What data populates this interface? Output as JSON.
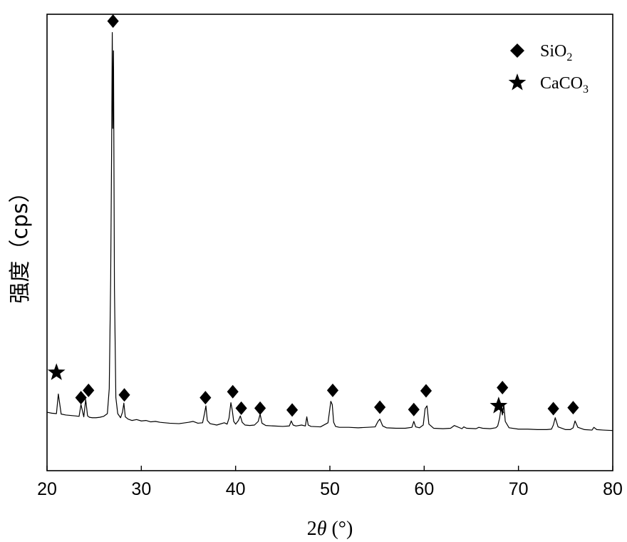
{
  "chart_data": {
    "type": "line",
    "title": "",
    "xlabel": {
      "prefix": "2",
      "symbol": "θ",
      "suffix": " (°)"
    },
    "ylabel": "强度（cps）",
    "xlim": [
      20,
      80
    ],
    "ylim": [
      0,
      100
    ],
    "xticks": [
      20,
      30,
      40,
      50,
      60,
      70,
      80
    ],
    "yticks_shown": false,
    "grid": false,
    "legend_position": "top-right",
    "legend": [
      {
        "marker": "diamond",
        "base": "SiO",
        "sub": "2"
      },
      {
        "marker": "star",
        "base": "CaCO",
        "sub": "3"
      }
    ],
    "series": [
      {
        "x": [
          20,
          20.5,
          21.0,
          21.2,
          21.5,
          22,
          22.5,
          23,
          23.4,
          23.6,
          23.9,
          24.1,
          24.3,
          24.5,
          24.8,
          25.2,
          25.6,
          26.0,
          26.4,
          26.6,
          26.75,
          26.85,
          26.92,
          26.98,
          27.05,
          27.15,
          27.3,
          27.5,
          27.8,
          28.0,
          28.15,
          28.3,
          28.6,
          29.0,
          29.5,
          30.0,
          30.5,
          31.0,
          31.5,
          32.0,
          33.0,
          34.0,
          35.0,
          35.5,
          36.0,
          36.5,
          36.7,
          36.85,
          37.0,
          37.3,
          38.0,
          38.8,
          39.1,
          39.3,
          39.5,
          39.65,
          39.8,
          40.0,
          40.3,
          40.5,
          40.7,
          41.0,
          41.5,
          42.0,
          42.4,
          42.6,
          42.8,
          43.2,
          44.0,
          45.0,
          45.7,
          45.9,
          46.1,
          46.4,
          47.0,
          47.4,
          47.55,
          47.7,
          48.0,
          49.0,
          49.8,
          50.1,
          50.25,
          50.4,
          50.6,
          51.0,
          52.0,
          53.0,
          54.0,
          54.8,
          55.1,
          55.3,
          55.6,
          56.0,
          57.0,
          58.0,
          58.7,
          58.9,
          59.1,
          59.5,
          59.9,
          60.1,
          60.3,
          60.5,
          61.0,
          62.0,
          62.8,
          63.2,
          64.0,
          64.2,
          64.5,
          65.5,
          65.8,
          66.2,
          67.0,
          67.6,
          67.8,
          68.0,
          68.15,
          68.3,
          68.45,
          68.6,
          69.0,
          70.0,
          71.0,
          72.0,
          73.0,
          73.5,
          73.7,
          73.9,
          74.2,
          75.0,
          75.5,
          75.8,
          76.0,
          76.3,
          77.0,
          77.8,
          78.0,
          78.3,
          79.0,
          80.0
        ],
        "y": [
          12.8,
          12.6,
          12.5,
          16.8,
          12.4,
          12.2,
          12.1,
          12.0,
          11.9,
          14.5,
          11.8,
          15.6,
          12.0,
          11.7,
          11.6,
          11.6,
          11.7,
          11.9,
          12.5,
          18,
          42,
          70,
          96,
          75,
          92,
          40,
          16,
          12.5,
          11.6,
          12.8,
          14.8,
          11.8,
          11.3,
          11.0,
          11.2,
          10.9,
          11.0,
          10.7,
          10.8,
          10.6,
          10.4,
          10.3,
          10.6,
          10.8,
          10.4,
          10.5,
          12.5,
          14.2,
          11.0,
          10.3,
          10.0,
          10.5,
          10.2,
          11.5,
          14.9,
          13.2,
          10.8,
          10.2,
          11.0,
          12.0,
          10.6,
          10.0,
          9.9,
          10.0,
          10.8,
          12.4,
          10.4,
          9.9,
          9.8,
          9.7,
          9.8,
          10.9,
          10.0,
          9.8,
          10.0,
          9.8,
          11.8,
          10.0,
          9.7,
          9.6,
          10.5,
          15.2,
          14.5,
          10.6,
          9.7,
          9.5,
          9.5,
          9.4,
          9.5,
          9.6,
          10.8,
          11.3,
          9.8,
          9.4,
          9.3,
          9.3,
          9.5,
          10.8,
          9.6,
          9.4,
          10.0,
          13.6,
          14.2,
          10.2,
          9.3,
          9.2,
          9.3,
          9.9,
          9.2,
          9.6,
          9.3,
          9.2,
          9.5,
          9.3,
          9.2,
          9.4,
          9.8,
          11.5,
          13.8,
          12.2,
          14.5,
          10.8,
          9.4,
          9.1,
          9.1,
          9.0,
          9.0,
          9.1,
          10.0,
          11.6,
          9.6,
          9.0,
          9.0,
          9.4,
          10.9,
          9.5,
          9.0,
          8.9,
          9.5,
          9.0,
          8.9,
          8.8
        ]
      }
    ],
    "markers": [
      {
        "type": "star",
        "x": 21.0,
        "y": 21.5
      },
      {
        "type": "diamond",
        "x": 23.6,
        "y": 16.0
      },
      {
        "type": "diamond",
        "x": 24.4,
        "y": 17.6
      },
      {
        "type": "diamond",
        "x": 27.0,
        "y": 98.5
      },
      {
        "type": "diamond",
        "x": 28.2,
        "y": 16.6
      },
      {
        "type": "diamond",
        "x": 36.8,
        "y": 16.0
      },
      {
        "type": "diamond",
        "x": 39.7,
        "y": 17.3
      },
      {
        "type": "diamond",
        "x": 40.6,
        "y": 13.7
      },
      {
        "type": "diamond",
        "x": 42.6,
        "y": 13.7
      },
      {
        "type": "diamond",
        "x": 46.0,
        "y": 13.3
      },
      {
        "type": "diamond",
        "x": 50.3,
        "y": 17.6
      },
      {
        "type": "diamond",
        "x": 55.3,
        "y": 13.9
      },
      {
        "type": "diamond",
        "x": 58.9,
        "y": 13.4
      },
      {
        "type": "diamond",
        "x": 60.2,
        "y": 17.5
      },
      {
        "type": "star",
        "x": 67.9,
        "y": 14.2
      },
      {
        "type": "diamond",
        "x": 68.3,
        "y": 18.2
      },
      {
        "type": "diamond",
        "x": 73.7,
        "y": 13.6
      },
      {
        "type": "diamond",
        "x": 75.8,
        "y": 13.8
      }
    ]
  }
}
